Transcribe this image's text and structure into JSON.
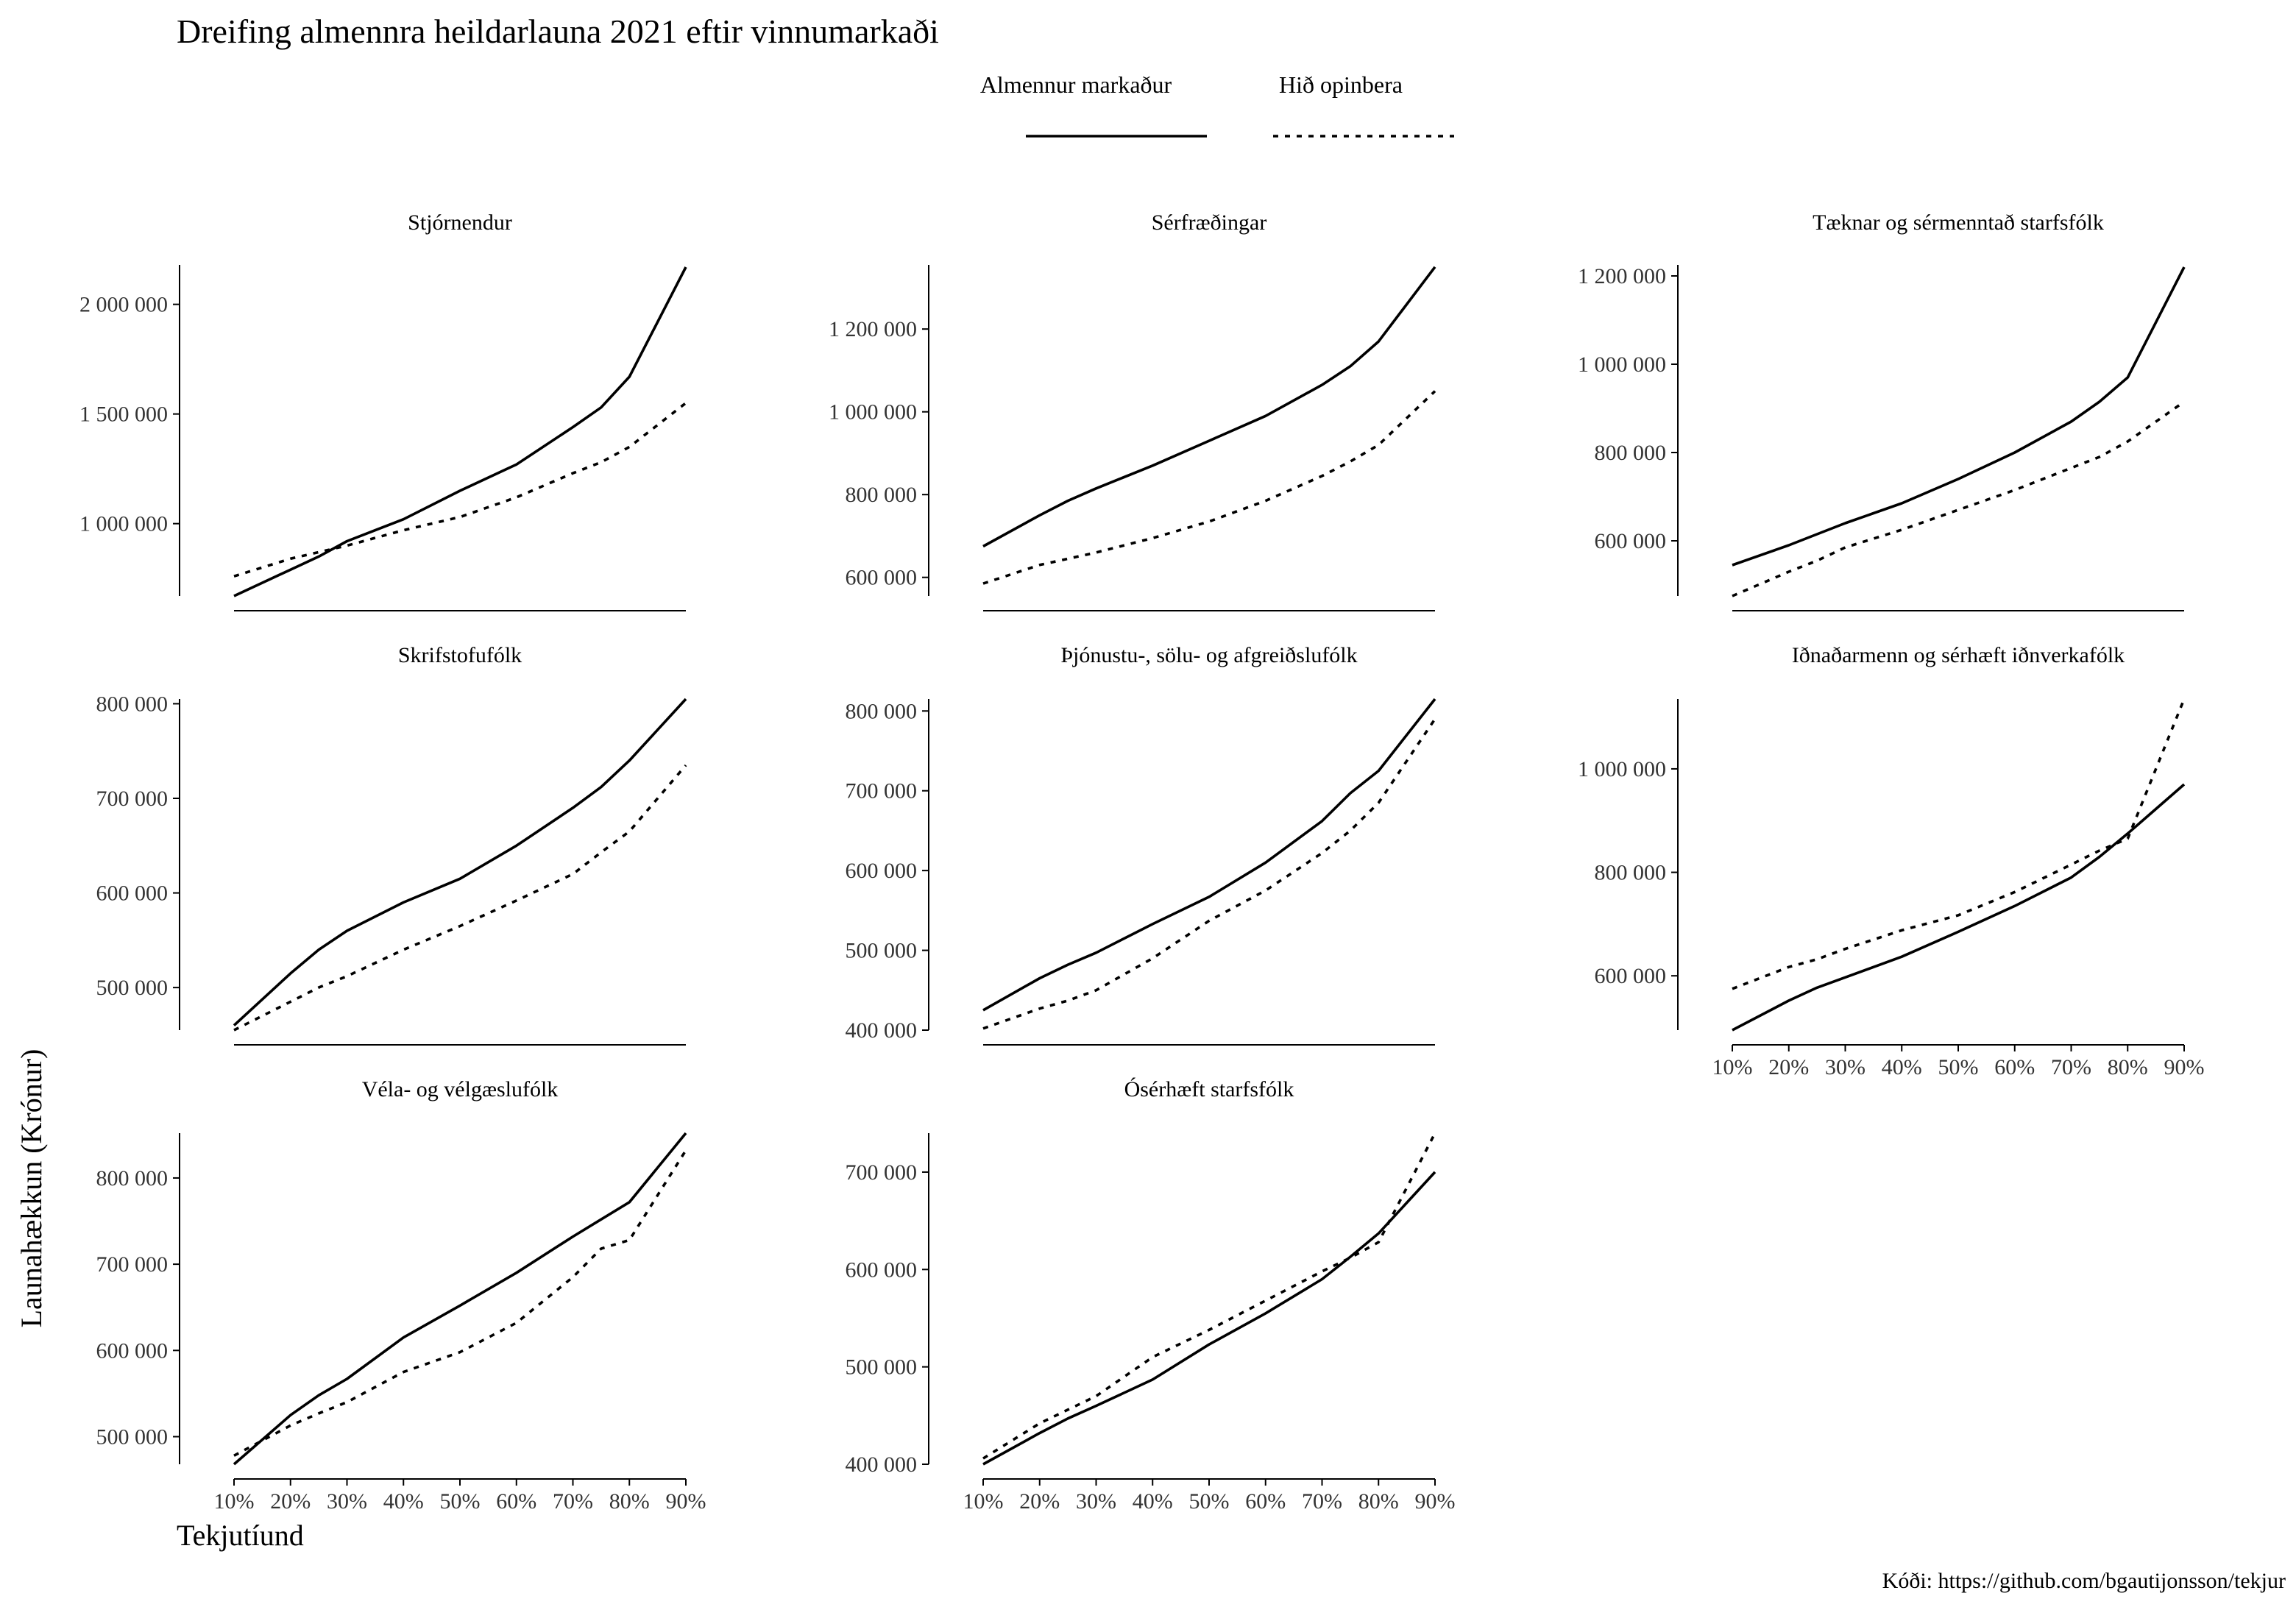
{
  "chart_data": {
    "type": "line",
    "title": "Dreifing almennra heildarlauna 2021 eftir vinnumarkaði",
    "xlabel": "Tekjutíund",
    "ylabel": "Launahækkun (Krónur)",
    "caption": "Kóði: https://github.com/bgautijonsson/tekjur",
    "x": [
      10,
      20,
      25,
      30,
      40,
      50,
      60,
      70,
      75,
      80,
      90
    ],
    "x_tick_labels": [
      "10%",
      "20%",
      "30%",
      "40%",
      "50%",
      "60%",
      "70%",
      "80%",
      "90%"
    ],
    "legend": [
      {
        "name": "Almennur markaður",
        "style": "solid"
      },
      {
        "name": "Hið opinbera",
        "style": "dashed"
      }
    ],
    "legend_position": "top",
    "grid": false,
    "panels": [
      {
        "title": "Stjórnendur",
        "ylim": [
          670000,
          2180000
        ],
        "yticks": [
          1000000,
          1500000,
          2000000
        ],
        "ytick_labels": [
          "1 000 000",
          "1 500 000",
          "2 000 000"
        ],
        "series": [
          {
            "name": "Almennur markaður",
            "values": [
              670000,
              790000,
              850000,
              920000,
              1020000,
              1150000,
              1270000,
              1440000,
              1530000,
              1670000,
              2170000
            ]
          },
          {
            "name": "Hið opinbera",
            "values": [
              760000,
              840000,
              870000,
              900000,
              970000,
              1030000,
              1120000,
              1230000,
              1280000,
              1350000,
              1550000
            ]
          }
        ]
      },
      {
        "title": "Sérfræðingar",
        "ylim": [
          555000,
          1355000
        ],
        "yticks": [
          600000,
          800000,
          1000000,
          1200000
        ],
        "ytick_labels": [
          "600 000",
          "800 000",
          "1 000 000",
          "1 200 000"
        ],
        "series": [
          {
            "name": "Almennur markaður",
            "values": [
              675000,
              750000,
              785000,
              815000,
              870000,
              930000,
              990000,
              1065000,
              1110000,
              1170000,
              1350000
            ]
          },
          {
            "name": "Hið opinbera",
            "values": [
              585000,
              630000,
              645000,
              660000,
              695000,
              735000,
              785000,
              845000,
              880000,
              920000,
              1050000
            ]
          }
        ]
      },
      {
        "title": "Tæknar og sérmenntað starfsfólk",
        "ylim": [
          475000,
          1225000
        ],
        "yticks": [
          600000,
          800000,
          1000000,
          1200000
        ],
        "ytick_labels": [
          "600 000",
          "800 000",
          "1 000 000",
          "1 200 000"
        ],
        "series": [
          {
            "name": "Almennur markaður",
            "values": [
              545000,
              590000,
              615000,
              640000,
              685000,
              740000,
              800000,
              870000,
              915000,
              970000,
              1220000
            ]
          },
          {
            "name": "Hið opinbera",
            "values": [
              475000,
              530000,
              555000,
              585000,
              625000,
              670000,
              715000,
              765000,
              790000,
              825000,
              915000
            ]
          }
        ]
      },
      {
        "title": "Skrifstofufólk",
        "ylim": [
          455000,
          805000
        ],
        "yticks": [
          500000,
          600000,
          700000,
          800000
        ],
        "ytick_labels": [
          "500 000",
          "600 000",
          "700 000",
          "800 000"
        ],
        "series": [
          {
            "name": "Almennur markaður",
            "values": [
              460000,
              515000,
              540000,
              560000,
              590000,
              615000,
              650000,
              690000,
              712000,
              740000,
              805000
            ]
          },
          {
            "name": "Hið opinbera",
            "values": [
              455000,
              485000,
              500000,
              512000,
              540000,
              565000,
              592000,
              620000,
              643000,
              665000,
              735000
            ]
          }
        ]
      },
      {
        "title": "Þjónustu-, sölu- og afgreiðslufólk",
        "ylim": [
          400000,
          815000
        ],
        "yticks": [
          400000,
          500000,
          600000,
          700000,
          800000
        ],
        "ytick_labels": [
          "400 000",
          "500 000",
          "600 000",
          "700 000",
          "800 000"
        ],
        "series": [
          {
            "name": "Almennur markaður",
            "values": [
              425000,
              465000,
              482000,
              497000,
              533000,
              567000,
              610000,
              662000,
              697000,
              725000,
              815000
            ]
          },
          {
            "name": "Hið opinbera",
            "values": [
              402000,
              427000,
              437000,
              450000,
              490000,
              537000,
              575000,
              622000,
              650000,
              685000,
              790000
            ]
          }
        ]
      },
      {
        "title": "Iðnaðarmenn og sérhæft iðnverkafólk",
        "ylim": [
          495000,
          1135000
        ],
        "yticks": [
          600000,
          800000,
          1000000
        ],
        "ytick_labels": [
          "600 000",
          "800 000",
          "1 000 000"
        ],
        "series": [
          {
            "name": "Almennur markaður",
            "values": [
              495000,
              552000,
              577000,
              597000,
              637000,
              685000,
              735000,
              790000,
              830000,
              875000,
              970000
            ]
          },
          {
            "name": "Hið opinbera",
            "values": [
              575000,
              617000,
              632000,
              652000,
              688000,
              717000,
              762000,
              815000,
              842000,
              865000,
              1135000
            ]
          }
        ]
      },
      {
        "title": "Véla- og vélgæslufólk",
        "ylim": [
          468000,
          852000
        ],
        "yticks": [
          500000,
          600000,
          700000,
          800000
        ],
        "ytick_labels": [
          "500 000",
          "600 000",
          "700 000",
          "800 000"
        ],
        "series": [
          {
            "name": "Almennur markaður",
            "values": [
              468000,
              525000,
              548000,
              567000,
              615000,
              652000,
              690000,
              732000,
              752000,
              772000,
              852000
            ]
          },
          {
            "name": "Hið opinbera",
            "values": [
              478000,
              513000,
              527000,
              540000,
              575000,
              598000,
              632000,
              685000,
              718000,
              728000,
              832000
            ]
          }
        ]
      },
      {
        "title": "Ósérhæft starfsfólk",
        "ylim": [
          400000,
          740000
        ],
        "yticks": [
          400000,
          500000,
          600000,
          700000
        ],
        "ytick_labels": [
          "400 000",
          "500 000",
          "600 000",
          "700 000"
        ],
        "series": [
          {
            "name": "Almennur markaður",
            "values": [
              400000,
              432000,
              447000,
              460000,
              487000,
              523000,
              555000,
              590000,
              613000,
              637000,
              700000
            ]
          },
          {
            "name": "Hið opinbera",
            "values": [
              406000,
              442000,
              456000,
              470000,
              510000,
              538000,
              568000,
              598000,
              612000,
              628000,
              740000
            ]
          }
        ]
      }
    ]
  }
}
